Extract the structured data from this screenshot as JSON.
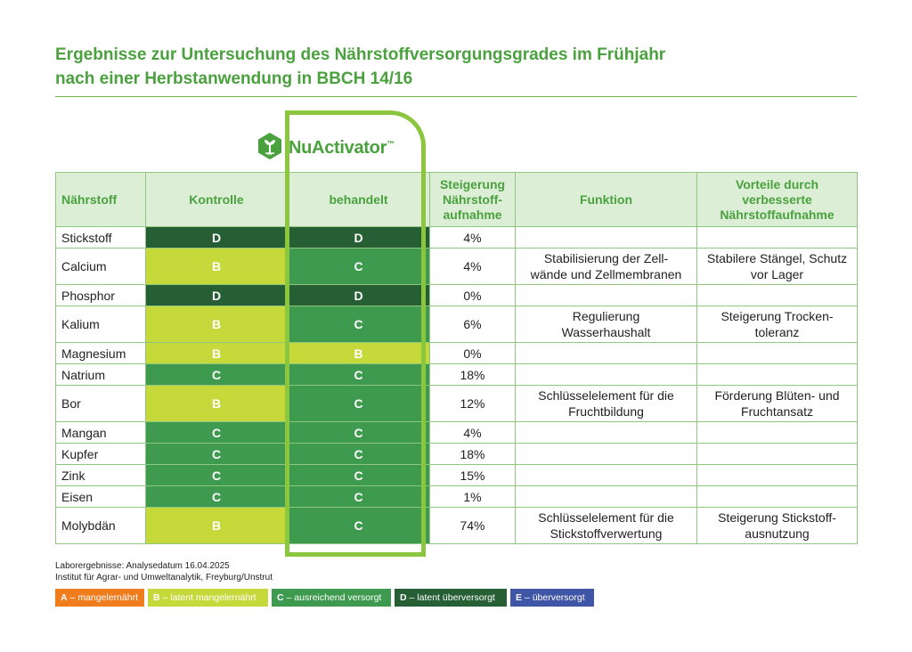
{
  "title": {
    "line1": "Ergebnisse zur Untersuchung des Nährstoffversorgungsgrades im Frühjahr",
    "line2": "nach einer Herbstanwendung in BBCH 14/16"
  },
  "logo": {
    "name": "NuActivator",
    "tm": "™",
    "icon": "hexagon-plant-icon"
  },
  "table": {
    "headers": {
      "nutrient": "Nährstoff",
      "control": "Kontrolle",
      "treated": "behandelt",
      "increase": [
        "Steigerung",
        "Nährstoff-",
        "aufnahme"
      ],
      "function": "Funktion",
      "benefits": [
        "Vorteile durch",
        "verbesserte",
        "Nährstoffaufnahme"
      ]
    },
    "rows": [
      {
        "nutrient": "Stickstoff",
        "control": "D",
        "treated": "D",
        "increase": "4%",
        "function": [
          "",
          ""
        ],
        "benefit": [
          "",
          ""
        ]
      },
      {
        "nutrient": "Calcium",
        "control": "B",
        "treated": "C",
        "increase": "4%",
        "function": [
          "Stabilisierung der Zell-",
          "wände und Zellmembranen"
        ],
        "benefit": [
          "Stabilere Stängel, Schutz",
          "vor Lager"
        ]
      },
      {
        "nutrient": "Phosphor",
        "control": "D",
        "treated": "D",
        "increase": "0%",
        "function": [
          "",
          ""
        ],
        "benefit": [
          "",
          ""
        ]
      },
      {
        "nutrient": "Kalium",
        "control": "B",
        "treated": "C",
        "increase": "6%",
        "function": [
          "Regulierung",
          "Wasserhaushalt"
        ],
        "benefit": [
          "Steigerung Trocken-",
          "toleranz"
        ]
      },
      {
        "nutrient": "Magnesium",
        "control": "B",
        "treated": "B",
        "increase": "0%",
        "function": [
          "",
          ""
        ],
        "benefit": [
          "",
          ""
        ]
      },
      {
        "nutrient": "Natrium",
        "control": "C",
        "treated": "C",
        "increase": "18%",
        "function": [
          "",
          ""
        ],
        "benefit": [
          "",
          ""
        ]
      },
      {
        "nutrient": "Bor",
        "control": "B",
        "treated": "C",
        "increase": "12%",
        "function": [
          "Schlüsselelement für die",
          "Fruchtbildung"
        ],
        "benefit": [
          "Förderung Blüten- und",
          "Fruchtansatz"
        ]
      },
      {
        "nutrient": "Mangan",
        "control": "C",
        "treated": "C",
        "increase": "4%",
        "function": [
          "",
          ""
        ],
        "benefit": [
          "",
          ""
        ]
      },
      {
        "nutrient": "Kupfer",
        "control": "C",
        "treated": "C",
        "increase": "18%",
        "function": [
          "",
          ""
        ],
        "benefit": [
          "",
          ""
        ]
      },
      {
        "nutrient": "Zink",
        "control": "C",
        "treated": "C",
        "increase": "15%",
        "function": [
          "",
          ""
        ],
        "benefit": [
          "",
          ""
        ]
      },
      {
        "nutrient": "Eisen",
        "control": "C",
        "treated": "C",
        "increase": "1%",
        "function": [
          "",
          ""
        ],
        "benefit": [
          "",
          ""
        ]
      },
      {
        "nutrient": "Molybdän",
        "control": "B",
        "treated": "C",
        "increase": "74%",
        "function": [
          "Schlüsselelement für die",
          "Stickstoffverwertung"
        ],
        "benefit": [
          "Steigerung Stickstoff-",
          "ausnutzung"
        ]
      }
    ]
  },
  "footnote": {
    "line1": "Laborergebnisse: Analysedatum 16.04.2025",
    "line2": "Institut für Agrar- und Umweltanalytik, Freyburg/Unstrut"
  },
  "legend": [
    {
      "code": "A",
      "label": "mangelernährt",
      "color": "#f07d1d"
    },
    {
      "code": "B",
      "label": "latent mangelernährt",
      "color": "#c5d93b"
    },
    {
      "code": "C",
      "label": "ausreichend versorgt",
      "color": "#3e9a4f"
    },
    {
      "code": "D",
      "label": "latent überversorgt",
      "color": "#265f33"
    },
    {
      "code": "E",
      "label": "überversorgt",
      "color": "#3f55a5"
    }
  ],
  "colors": {
    "accent": "#4aa13e",
    "highlight": "#8cc63f",
    "header_bg": "#dcefd6"
  }
}
